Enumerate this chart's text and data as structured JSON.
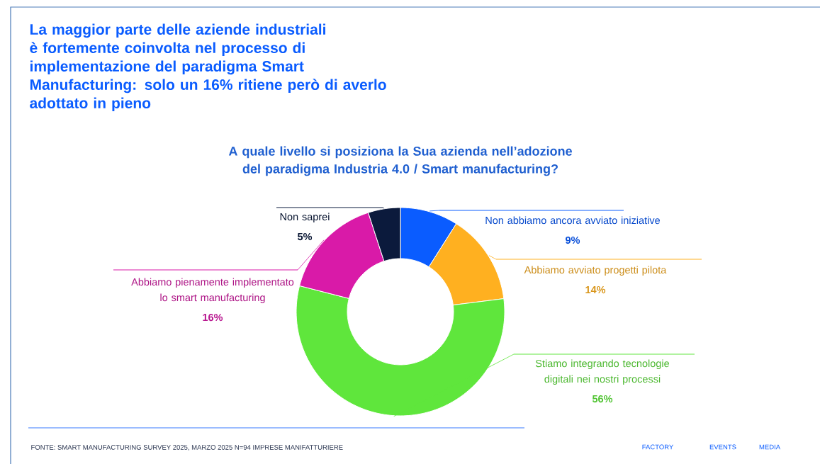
{
  "chart_data": {
    "type": "donut",
    "title": "La maggior parte delle aziende industriali è fortemente coinvolta nel processo di implementazione del paradigma Smart Manufacturing: solo un 16% ritiene però di averlo adottato in pieno",
    "subtitle": "A quale livello si posiziona la Sua azienda nell’adozione del paradigma Industria 4.0 / Smart manufacturing?",
    "categories": [
      "Non abbiamo ancora avviato iniziative",
      "Abbiamo avviato progetti pilota",
      "Stiamo integrando tecnologie digitali nei nostri processi",
      "Abbiamo pienamente implementato lo smart manufacturing",
      "Non saprei"
    ],
    "values": [
      9,
      14,
      56,
      16,
      5
    ],
    "value_labels": [
      "9%",
      "14%",
      "56%",
      "16%",
      "5%"
    ],
    "colors": [
      "#0a5cff",
      "#ffb020",
      "#5fe63c",
      "#d91aa8",
      "#0b1a3c"
    ],
    "legend": false,
    "annotations": [
      "FONTE: SMART MANUFACTURING SURVEY 2025, MARZO 2025  N=94 IMPRESE MANIFATTURIERE",
      "FACTORY",
      "EVENTS",
      "MEDIA"
    ]
  }
}
